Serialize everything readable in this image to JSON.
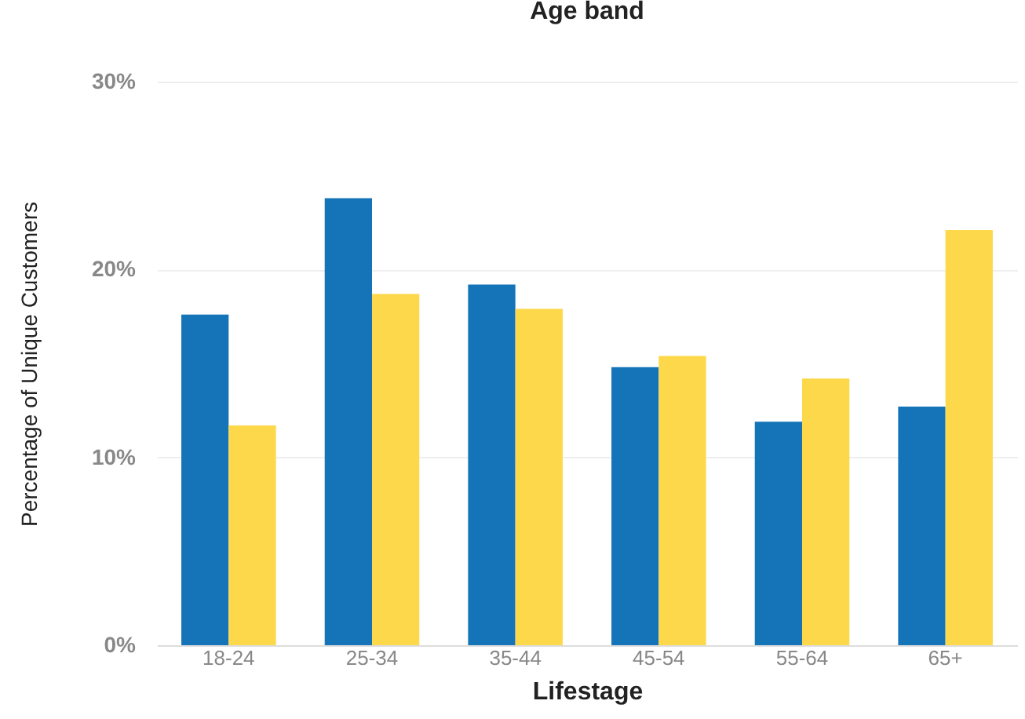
{
  "chart_data": {
    "type": "bar",
    "title": "Age band",
    "xlabel": "Lifestage",
    "ylabel": "Percentage of Unique Customers",
    "categories": [
      "18-24",
      "25-34",
      "35-44",
      "45-54",
      "55-64",
      "65+"
    ],
    "series": [
      {
        "color": "#1574b8",
        "values": [
          17.6,
          23.8,
          19.2,
          14.8,
          11.9,
          12.7
        ]
      },
      {
        "color": "#fdd84a",
        "values": [
          11.7,
          18.7,
          17.9,
          15.4,
          14.2,
          22.1
        ]
      }
    ],
    "ylim": [
      0,
      30
    ],
    "yticks": [
      {
        "value": 0,
        "label": "0%"
      },
      {
        "value": 10,
        "label": "10%"
      },
      {
        "value": 20,
        "label": "20%"
      },
      {
        "value": 30,
        "label": "30%"
      }
    ],
    "grid": "y",
    "legend": false
  }
}
